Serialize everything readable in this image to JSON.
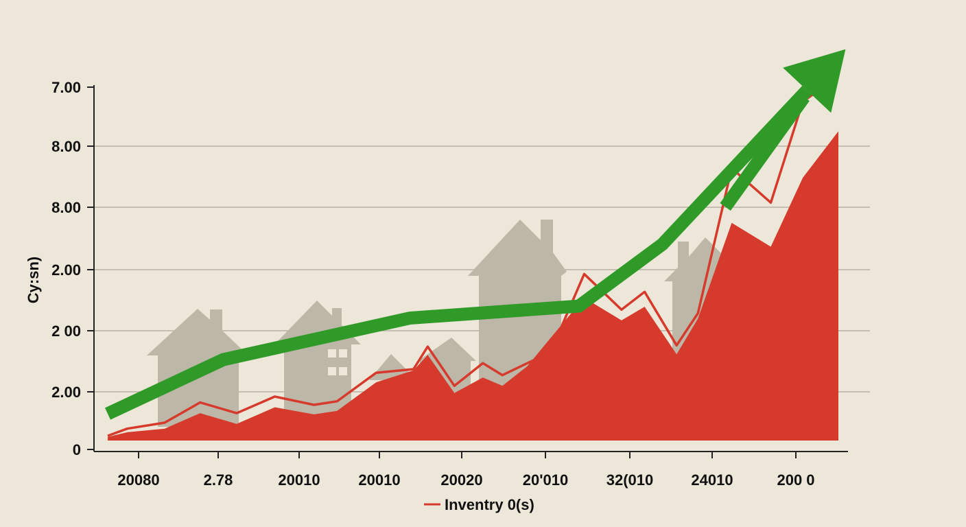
{
  "chart_data": {
    "type": "area",
    "title": "",
    "xlabel": "",
    "ylabel": "Cy:sn)",
    "x_tick_labels": [
      "20080",
      "2.78",
      "20010",
      "20010",
      "20020",
      "20'010",
      "32(010",
      "24010",
      "200 0"
    ],
    "y_tick_labels": [
      "0",
      "2.00",
      "2 00",
      "2.00",
      "8.00",
      "8.00",
      "7.00"
    ],
    "ylim": [
      0,
      6
    ],
    "legend": [
      {
        "label": "Inventry 0(s)",
        "color": "#d63a2c"
      }
    ],
    "series": [
      {
        "name": "Inventry 0(s)",
        "kind": "area",
        "color": "#d63a2c",
        "x": [
          0,
          0.22,
          0.64,
          1.04,
          1.45,
          1.88,
          2.32,
          2.58,
          3.02,
          3.44,
          3.6,
          3.9,
          4.22,
          4.44,
          4.72,
          4.98,
          5.36,
          5.78,
          6.04,
          6.4,
          6.64,
          7.02,
          7.46,
          7.82,
          8.22
        ],
        "values": [
          0.06,
          0.14,
          0.2,
          0.46,
          0.28,
          0.56,
          0.44,
          0.5,
          0.98,
          1.18,
          1.44,
          0.8,
          1.06,
          0.92,
          1.25,
          1.72,
          2.4,
          2.02,
          2.25,
          1.45,
          2.05,
          3.66,
          3.26,
          4.42,
          5.2
        ]
      },
      {
        "name": "outline",
        "kind": "line",
        "color": "#d63a2c",
        "x": [
          0,
          0.22,
          0.64,
          1.04,
          1.45,
          1.88,
          2.32,
          2.58,
          3.02,
          3.44,
          3.6,
          3.9,
          4.22,
          4.44,
          4.72,
          4.98,
          5.36,
          5.78,
          6.04,
          6.4,
          6.64,
          7.02,
          7.46,
          7.82,
          8.22
        ],
        "values": [
          0.08,
          0.2,
          0.3,
          0.64,
          0.46,
          0.74,
          0.6,
          0.66,
          1.14,
          1.2,
          1.58,
          0.92,
          1.3,
          1.1,
          1.3,
          1.48,
          2.8,
          2.2,
          2.5,
          1.6,
          2.14,
          4.58,
          4.0,
          5.7,
          6.12
        ]
      },
      {
        "name": "trend",
        "kind": "arrow",
        "color": "#2f9a28",
        "x": [
          0,
          1.3,
          3.4,
          5.3,
          6.24,
          8.3
        ],
        "values": [
          0.45,
          1.36,
          2.06,
          2.26,
          3.3,
          6.58
        ]
      }
    ]
  }
}
